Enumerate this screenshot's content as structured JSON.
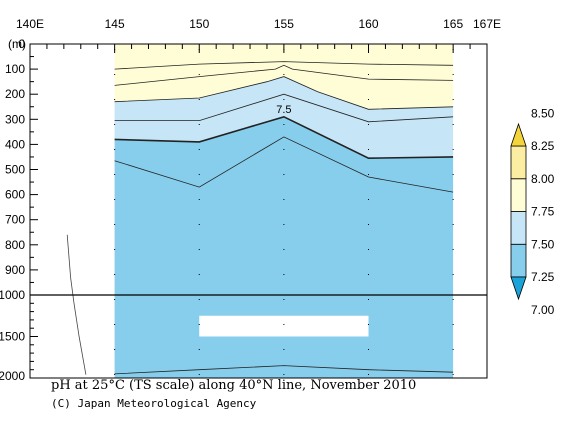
{
  "chart_data": {
    "type": "heatmap",
    "title": "pH at 25°C (TS scale) along 40°N line, November 2010",
    "credit": "(C) Japan Meteorological Agency",
    "x_ticks": [
      "140E",
      "145",
      "150",
      "155",
      "160",
      "165",
      "167E"
    ],
    "x_tick_values": [
      140,
      145,
      150,
      155,
      160,
      165,
      167
    ],
    "xlim": [
      140,
      167
    ],
    "y_unit_label": "(m)",
    "y_upper_ticks": [
      "0",
      "100",
      "200",
      "300",
      "400",
      "500",
      "600",
      "700",
      "800",
      "900",
      "1000"
    ],
    "y_lower_ticks": [
      "1500",
      "2000"
    ],
    "ylim": [
      0,
      2000
    ],
    "y_scale_break": 1000,
    "station_longitudes": [
      145,
      150,
      155,
      160,
      165
    ],
    "colorbar": {
      "labels": [
        "7.00",
        "7.25",
        "7.50",
        "7.75",
        "8.00",
        "8.25",
        "8.50"
      ],
      "levels": [
        7.0,
        7.25,
        7.5,
        7.75,
        8.0,
        8.25,
        8.5
      ],
      "colors": [
        "#1aa3d9",
        "#87cdec",
        "#c6e5f6",
        "#fffdd6",
        "#fbeda1",
        "#f4d43b"
      ]
    },
    "contour_label": "7.5",
    "contours": [
      {
        "level": "upper",
        "x": [
          145,
          150,
          155,
          160,
          165
        ],
        "y": [
          100,
          80,
          70,
          80,
          85
        ]
      },
      {
        "level": "upper",
        "x": [
          145,
          150,
          154.5,
          155,
          155.5,
          160,
          165
        ],
        "y": [
          165,
          130,
          100,
          85,
          100,
          140,
          145
        ]
      },
      {
        "level": "upper",
        "x": [
          145,
          150,
          154,
          155,
          157,
          160,
          165
        ],
        "y": [
          230,
          215,
          150,
          130,
          190,
          260,
          250
        ]
      },
      {
        "level": "upper",
        "x": [
          145,
          150,
          155,
          160,
          165
        ],
        "y": [
          305,
          305,
          200,
          310,
          290
        ]
      },
      {
        "level": 7.5,
        "x": [
          145,
          150,
          155,
          160,
          165
        ],
        "y": [
          380,
          390,
          290,
          455,
          450
        ]
      },
      {
        "level": "lower",
        "x": [
          145,
          150,
          155,
          160,
          165
        ],
        "y": [
          465,
          570,
          370,
          530,
          590
        ]
      },
      {
        "level": "lower",
        "x": [
          145,
          150,
          155,
          160,
          165
        ],
        "y": [
          1950,
          1900,
          1850,
          1900,
          1930
        ]
      }
    ]
  }
}
